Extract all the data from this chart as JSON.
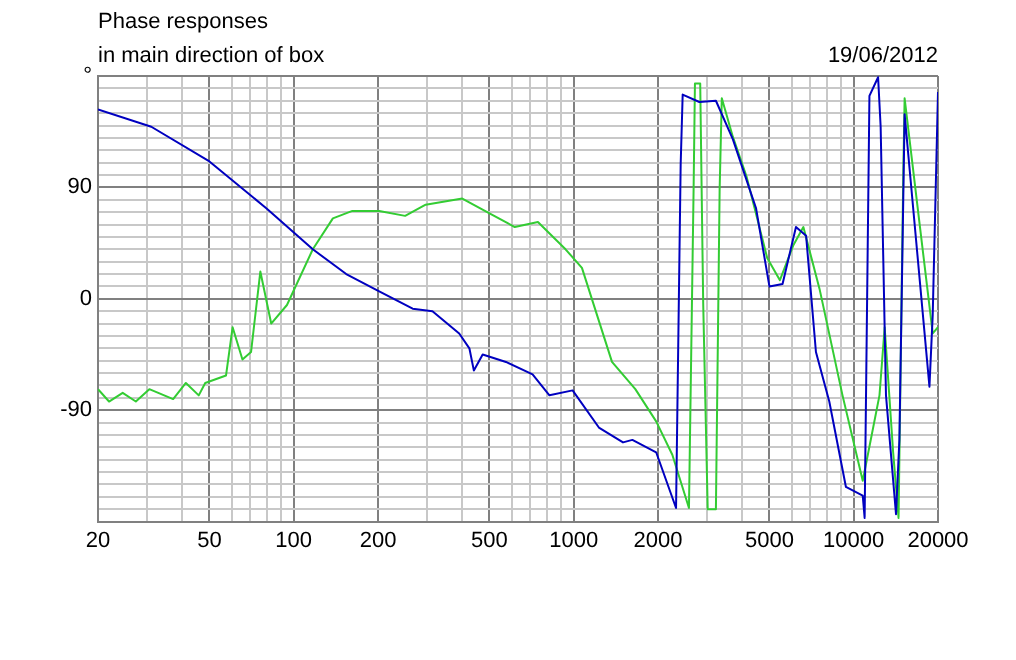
{
  "chart_data": {
    "type": "line",
    "title": "Phase responses",
    "subtitle": "in main direction of box",
    "annotations": [
      "19/06/2012"
    ],
    "log": "x",
    "grid": true,
    "legend": false,
    "marker": "none",
    "line_style": "solid",
    "xlim": [
      20,
      20000
    ],
    "xticks": [
      20,
      {
        "value": 30,
        "label": null
      },
      {
        "value": 40,
        "label": null
      },
      50,
      {
        "value": 60,
        "label": null
      },
      {
        "value": 70,
        "label": null
      },
      {
        "value": 80,
        "label": null
      },
      {
        "value": 90,
        "label": null
      },
      100,
      200,
      {
        "value": 300,
        "label": null
      },
      {
        "value": 400,
        "label": null
      },
      500,
      {
        "value": 600,
        "label": null
      },
      {
        "value": 700,
        "label": null
      },
      {
        "value": 800,
        "label": null
      },
      {
        "value": 900,
        "label": null
      },
      1000,
      2000,
      {
        "value": 3000,
        "label": null
      },
      {
        "value": 4000,
        "label": null
      },
      5000,
      {
        "value": 6000,
        "label": null
      },
      {
        "value": 7000,
        "label": null
      },
      {
        "value": 8000,
        "label": null
      },
      {
        "value": 9000,
        "label": null
      },
      10000,
      20000
    ],
    "ylim": [
      -180,
      180
    ],
    "yticks": [
      {
        "value": -180,
        "label": null
      },
      {
        "value": -170,
        "label": null
      },
      {
        "value": -160,
        "label": null
      },
      {
        "value": -150,
        "label": null
      },
      {
        "value": -140,
        "label": null
      },
      {
        "value": -130,
        "label": null
      },
      {
        "value": -120,
        "label": null
      },
      {
        "value": -110,
        "label": null
      },
      {
        "value": -100,
        "label": null
      },
      -90,
      {
        "value": -80,
        "label": null
      },
      {
        "value": -70,
        "label": null
      },
      {
        "value": -60,
        "label": null
      },
      {
        "value": -50,
        "label": null
      },
      {
        "value": -40,
        "label": null
      },
      {
        "value": -30,
        "label": null
      },
      {
        "value": -20,
        "label": null
      },
      {
        "value": -10,
        "label": null
      },
      0,
      {
        "value": 10,
        "label": null
      },
      {
        "value": 20,
        "label": null
      },
      {
        "value": 30,
        "label": null
      },
      {
        "value": 40,
        "label": null
      },
      {
        "value": 50,
        "label": null
      },
      {
        "value": 60,
        "label": null
      },
      {
        "value": 70,
        "label": null
      },
      {
        "value": 80,
        "label": null
      },
      90,
      {
        "value": 100,
        "label": null
      },
      {
        "value": 110,
        "label": null
      },
      {
        "value": 120,
        "label": null
      },
      {
        "value": 130,
        "label": null
      },
      {
        "value": 140,
        "label": null
      },
      {
        "value": 150,
        "label": null
      },
      {
        "value": 160,
        "label": null
      },
      {
        "value": 170,
        "label": null
      },
      {
        "value": 180,
        "label": "°"
      }
    ],
    "series": [
      {
        "color": "#0000c0",
        "x": [
          20,
          31,
          50,
          80,
          117,
          154,
          202,
          266,
          313,
          390,
          424,
          440,
          473,
          573,
          713,
          819,
          991,
          1230,
          1500,
          1620,
          1970,
          2320,
          2410,
          2450,
          2810,
          3220,
          3700,
          4480,
          5000,
          5570,
          6220,
          6760,
          7330,
          8180,
          9380,
          10770,
          10940,
          11380,
          12220,
          12480,
          13040,
          14160,
          14560,
          15200,
          18640,
          19150,
          20000
        ],
        "values": [
          153,
          139,
          111,
          73,
          40,
          20,
          6,
          -8,
          -10,
          -28,
          -40,
          -58,
          -45,
          -51,
          -61,
          -78,
          -74,
          -104,
          -116,
          -114,
          -124,
          -169,
          109,
          165,
          159,
          160,
          129,
          73,
          10,
          12,
          58,
          51,
          -43,
          -83,
          -152,
          -159,
          -177,
          164,
          179,
          139,
          -78,
          -174,
          -114,
          149,
          -71,
          -13,
          167
        ]
      },
      {
        "color": "#33cc33",
        "x": [
          20,
          21.9,
          24.5,
          27.3,
          30.5,
          37.1,
          41.2,
          45.8,
          48.3,
          57.3,
          60.5,
          65.6,
          70.4,
          76,
          83.1,
          94.6,
          117,
          138,
          162,
          202,
          250,
          296,
          400,
          510,
          616,
          745,
          935,
          1070,
          1370,
          1660,
          1970,
          2250,
          2580,
          2680,
          2710,
          2830,
          2900,
          3010,
          3220,
          3320,
          3380,
          3700,
          4140,
          4910,
          5450,
          6080,
          6610,
          7550,
          9120,
          10770,
          12360,
          12900,
          13830,
          14460,
          15040,
          15200,
          17140,
          19150,
          20000
        ],
        "values": [
          -73,
          -83,
          -76,
          -83,
          -73,
          -81,
          -68,
          -78,
          -68,
          -62,
          -23,
          -49,
          -43,
          22,
          -20,
          -5,
          40,
          65,
          71,
          71,
          67,
          76,
          81,
          68,
          58,
          62,
          40,
          25,
          -51,
          -73,
          -99,
          -126,
          -169,
          88,
          174,
          174,
          -3,
          -170,
          -170,
          88,
          162,
          131,
          99,
          33,
          15,
          43,
          58,
          8,
          -78,
          -147,
          -78,
          -23,
          -124,
          -177,
          104,
          162,
          63,
          -28,
          -23
        ]
      }
    ]
  }
}
